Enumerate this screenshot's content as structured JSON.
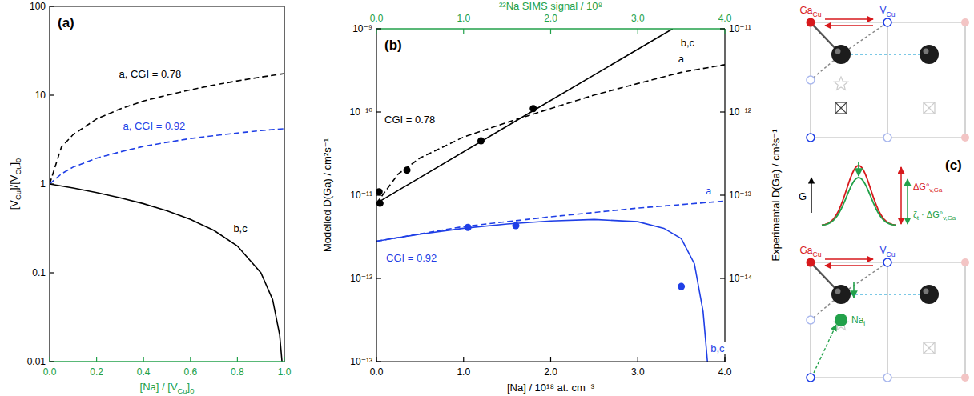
{
  "chart_data": [
    {
      "type": "line",
      "panel_label": "(a)",
      "x_label": [
        "[Na] / [V",
        {
          "sub": "Cu"
        },
        "]",
        {
          "sub": "0"
        }
      ],
      "y_label": [
        "[V",
        {
          "sub": "Cu"
        },
        "]/[V",
        {
          "sub": "Cu"
        },
        "]",
        {
          "sub": "0"
        }
      ],
      "xlim": [
        0,
        1
      ],
      "xticks": [
        {
          "value": 0,
          "label": "0.0"
        },
        {
          "value": 0.2,
          "label": "0.2"
        },
        {
          "value": 0.4,
          "label": "0.4"
        },
        {
          "value": 0.6,
          "label": "0.6"
        },
        {
          "value": 0.8,
          "label": "0.8"
        },
        {
          "value": 1,
          "label": "1.0"
        }
      ],
      "ylim": [
        0.01,
        100
      ],
      "yticks": [
        0.01,
        0.1,
        1,
        10,
        100
      ],
      "log": "y",
      "series": [
        {
          "name": "a, CGI = 0.78",
          "color": "#000000",
          "line_style": "dashed",
          "x": [
            0,
            0.05,
            0.1,
            0.2,
            0.3,
            0.4,
            0.5,
            0.6,
            0.7,
            0.8,
            0.9,
            1.0
          ],
          "values": [
            1,
            2.6,
            3.6,
            5.4,
            7,
            8.6,
            10,
            11.5,
            13,
            14.5,
            16,
            17.5
          ]
        },
        {
          "name": "a, CGI = 0.92",
          "color": "#1f3fe6",
          "line_style": "dashed",
          "x": [
            0,
            0.05,
            0.1,
            0.2,
            0.3,
            0.4,
            0.5,
            0.6,
            0.7,
            0.8,
            0.9,
            1.0
          ],
          "values": [
            1,
            1.3,
            1.55,
            1.95,
            2.3,
            2.65,
            2.95,
            3.25,
            3.5,
            3.75,
            4.0,
            4.2
          ]
        },
        {
          "name": "b,c",
          "color": "#000000",
          "line_style": "solid",
          "x": [
            0,
            0.1,
            0.2,
            0.3,
            0.4,
            0.5,
            0.6,
            0.7,
            0.8,
            0.9,
            0.95,
            0.98,
            0.99
          ],
          "values": [
            1,
            0.9,
            0.8,
            0.7,
            0.6,
            0.5,
            0.4,
            0.3,
            0.2,
            0.1,
            0.05,
            0.02,
            0.01
          ]
        }
      ]
    },
    {
      "type": "line",
      "panel_label": "(b)",
      "x_label": "[Na] / 10¹⁸ at. cm⁻³",
      "x2_label": "²²Na SIMS signal / 10⁸",
      "y_label": "Modelled D(Ga) / cm²s⁻¹",
      "y2_label": "Experimental D(Ga) / cm²s⁻¹",
      "xlim": [
        0,
        4
      ],
      "xticks": [
        {
          "value": 0,
          "label": "0.0"
        },
        {
          "value": 1,
          "label": "1.0"
        },
        {
          "value": 2,
          "label": "2.0"
        },
        {
          "value": 3,
          "label": "3.0"
        },
        {
          "value": 4,
          "label": "4.0"
        }
      ],
      "x2lim": [
        0,
        4
      ],
      "x2ticks": [
        {
          "value": 0,
          "label": "0.0"
        },
        {
          "value": 1,
          "label": "1.0"
        },
        {
          "value": 2,
          "label": "2.0"
        },
        {
          "value": 3,
          "label": "3.0"
        },
        {
          "value": 4,
          "label": "4.0"
        }
      ],
      "ylim": [
        1e-13,
        1e-09
      ],
      "yticks": [
        {
          "value": 1e-13,
          "label": "10⁻¹³"
        },
        {
          "value": 1e-12,
          "label": "10⁻¹²"
        },
        {
          "value": 1e-11,
          "label": "10⁻¹¹"
        },
        {
          "value": 1e-10,
          "label": "10⁻¹⁰"
        },
        {
          "value": 1e-09,
          "label": "10⁻⁹"
        }
      ],
      "y2lim": [
        1e-15,
        1e-11
      ],
      "y2ticks": [
        {
          "value": 1e-14,
          "label": "10⁻¹⁴"
        },
        {
          "value": 1e-13,
          "label": "10⁻¹³"
        },
        {
          "value": 1e-12,
          "label": "10⁻¹²"
        },
        {
          "value": 1e-11,
          "label": "10⁻¹¹"
        }
      ],
      "log": "y",
      "annotations": [
        {
          "text": "CGI = 0.78",
          "color": "#000000"
        },
        {
          "text": "CGI = 0.92",
          "color": "#1f3fe6"
        }
      ],
      "series": [
        {
          "name": "b,c",
          "color": "#000000",
          "line_style": "solid",
          "x": [
            0,
            1.7,
            3.4
          ],
          "values": [
            8e-12,
            9e-11,
            1e-09
          ]
        },
        {
          "name": "a",
          "color": "#000000",
          "line_style": "dashed",
          "x": [
            0,
            0.25,
            0.5,
            1,
            1.5,
            2,
            2.5,
            3,
            3.5,
            4
          ],
          "values": [
            8e-12,
            1.8e-11,
            2.8e-11,
            5e-11,
            7.5e-11,
            1.1e-10,
            1.6e-10,
            2.2e-10,
            3e-10,
            3.7e-10
          ]
        },
        {
          "name": "a",
          "color": "#1f3fe6",
          "line_style": "dashed",
          "x": [
            0,
            1,
            2,
            3,
            4
          ],
          "values": [
            2.8e-12,
            4.2e-12,
            5.5e-12,
            7e-12,
            8.5e-12
          ]
        },
        {
          "name": "b,c",
          "color": "#1f3fe6",
          "line_style": "solid",
          "x": [
            0,
            0.5,
            1,
            1.5,
            2,
            2.5,
            3,
            3.3,
            3.5,
            3.65,
            3.75,
            3.8
          ],
          "values": [
            2.8e-12,
            3.4e-12,
            4e-12,
            4.5e-12,
            4.9e-12,
            5.1e-12,
            4.8e-12,
            4e-12,
            3e-12,
            1.5e-12,
            4e-13,
            1e-13
          ]
        },
        {
          "type": "scatter",
          "marker": "circle",
          "color": "#000000",
          "axis": "y2",
          "x": [
            0.03,
            0.04,
            0.35,
            1.2,
            1.8
          ],
          "values": [
            1.1e-13,
            8e-14,
            2e-13,
            4.5e-13,
            1.1e-12
          ]
        },
        {
          "type": "scatter",
          "marker": "circle",
          "color": "#1f3fe6",
          "axis": "y2",
          "x": [
            1.05,
            1.6,
            3.5
          ],
          "values": [
            4.1e-14,
            4.3e-14,
            8e-15
          ]
        }
      ]
    }
  ],
  "diagram": {
    "label": "(c)",
    "energy_axis": "G",
    "top": {
      "ga": [
        "Ga",
        {
          "sub": "Cu"
        }
      ],
      "vacancy": [
        "V",
        {
          "sub": "Cu"
        }
      ]
    },
    "bottom": {
      "ga": [
        "Ga",
        {
          "sub": "Cu"
        }
      ],
      "vacancy": [
        "V",
        {
          "sub": "Cu"
        }
      ],
      "sodium": [
        "Na",
        {
          "sub": "i"
        }
      ]
    },
    "barrier": [
      "ΔG°",
      {
        "sub": "v,Ga"
      }
    ],
    "lowered_barrier": [
      "ζ",
      {
        "sub": "t"
      },
      " · ΔG°",
      {
        "sub": "v,Ga"
      }
    ]
  }
}
